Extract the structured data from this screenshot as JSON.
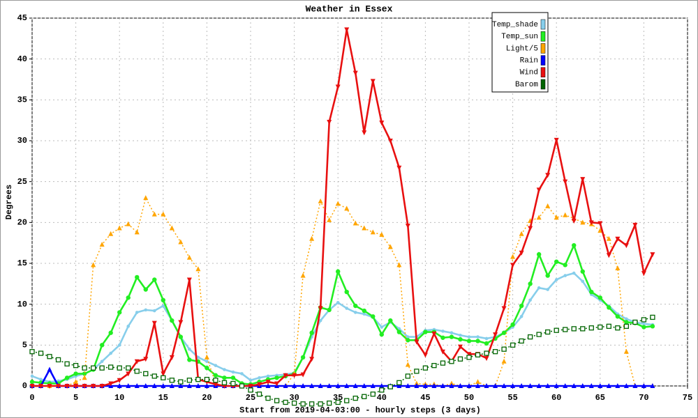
{
  "chart_data": {
    "type": "line",
    "title": "Weather in Essex",
    "xlabel": "Start from 2019-04-03:00 - hourly steps (3 days)",
    "ylabel": "Degrees",
    "x": [
      0,
      1,
      2,
      3,
      4,
      5,
      6,
      7,
      8,
      9,
      10,
      11,
      12,
      13,
      14,
      15,
      16,
      17,
      18,
      19,
      20,
      21,
      22,
      23,
      24,
      25,
      26,
      27,
      28,
      29,
      30,
      31,
      32,
      33,
      34,
      35,
      36,
      37,
      38,
      39,
      40,
      41,
      42,
      43,
      44,
      45,
      46,
      47,
      48,
      49,
      50,
      51,
      52,
      53,
      54,
      55,
      56,
      57,
      58,
      59,
      60,
      61,
      62,
      63,
      64,
      65,
      66,
      67,
      68,
      69,
      70,
      71
    ],
    "xlim": [
      0,
      75
    ],
    "xticks": [
      0,
      5,
      10,
      15,
      20,
      25,
      30,
      35,
      40,
      45,
      50,
      55,
      60,
      65,
      70,
      75
    ],
    "ylim": [
      0,
      45
    ],
    "yticks": [
      0,
      5,
      10,
      15,
      20,
      25,
      30,
      35,
      40,
      45
    ],
    "grid": true,
    "legend": "top-right",
    "series": [
      {
        "name": "Temp_shade",
        "color": "#87ceeb",
        "marker": "dot",
        "dash": false,
        "values": [
          1.2,
          0.8,
          0.5,
          0.6,
          0.8,
          1.2,
          1.5,
          2,
          3,
          4,
          5,
          7.3,
          9,
          9.3,
          9.2,
          9.8,
          8,
          6,
          4.5,
          3.5,
          3,
          2.5,
          2,
          1.7,
          1.5,
          0.7,
          1,
          1.2,
          1.3,
          1.4,
          1.6,
          3.5,
          6,
          8,
          9.3,
          10.2,
          9.5,
          9,
          8.8,
          8.4,
          7.2,
          7.8,
          7,
          6,
          6,
          6.8,
          6.9,
          6.7,
          6.5,
          6.2,
          6,
          6,
          5.8,
          6,
          6.5,
          7.2,
          8.5,
          10.5,
          12,
          11.8,
          13,
          13.5,
          13.8,
          12.8,
          11.2,
          10.5,
          9.8,
          8.8,
          8.2,
          7.8,
          7.6,
          7.5
        ]
      },
      {
        "name": "Temp_sun",
        "color": "#22ee22",
        "marker": "circle",
        "dash": false,
        "values": [
          0.5,
          0.4,
          0.3,
          0.3,
          1,
          1.5,
          1.5,
          2,
          5,
          6.5,
          9,
          10.8,
          13.3,
          11.8,
          13,
          10.5,
          8,
          6,
          3.2,
          3,
          2.2,
          1.3,
          1,
          1,
          0.3,
          0.2,
          0.5,
          0.8,
          1,
          1.2,
          1.5,
          3.5,
          6.5,
          9.6,
          9.3,
          14,
          11.5,
          9.8,
          9.2,
          8.5,
          6.3,
          8,
          6.6,
          5.6,
          5.6,
          6.6,
          6.6,
          5.9,
          6,
          5.7,
          5.5,
          5.5,
          5.2,
          5.8,
          6.5,
          7.5,
          9.8,
          12.5,
          16.1,
          13.5,
          15.2,
          14.8,
          17.2,
          14,
          11.5,
          10.8,
          9.6,
          8.5,
          7.8,
          7.7,
          7.2,
          7.3
        ]
      },
      {
        "name": "Light/5",
        "color": "#ffa500",
        "marker": "tri-up",
        "dash": true,
        "values": [
          0,
          0,
          0,
          0,
          0,
          0.5,
          1,
          14.8,
          17.3,
          18.6,
          19.3,
          19.8,
          18.8,
          23,
          21,
          21,
          19.3,
          17.6,
          15.7,
          14.3,
          3.5,
          0.3,
          0,
          0,
          0,
          0,
          0,
          0,
          0,
          0,
          1.5,
          13.5,
          18,
          22.6,
          20.3,
          22.3,
          21.7,
          19.9,
          19.3,
          18.8,
          18.5,
          17,
          14.8,
          2.6,
          0.3,
          0.2,
          0.2,
          0,
          0.3,
          0,
          0,
          0.5,
          0,
          0,
          3,
          15.8,
          18.6,
          20.2,
          20.6,
          22,
          20.6,
          20.9,
          20.5,
          20,
          19.8,
          19,
          18,
          14.4,
          4.2,
          0,
          0,
          0
        ]
      },
      {
        "name": "Rain",
        "color": "#0000ff",
        "marker": "tri-up",
        "dash": false,
        "values": [
          0,
          0,
          2,
          0,
          0,
          0,
          0,
          0,
          0,
          0,
          0,
          0,
          0,
          0,
          0,
          0,
          0,
          0,
          0,
          0,
          0,
          0,
          0,
          0,
          0,
          0,
          0,
          0,
          0,
          0,
          0,
          0,
          0,
          0,
          0,
          0,
          0,
          0,
          0,
          0,
          0,
          0,
          0,
          0,
          0,
          0,
          0,
          0,
          0,
          0,
          0,
          0,
          0,
          0,
          0,
          0,
          0,
          0,
          0,
          0,
          0,
          0,
          0,
          0,
          0,
          0,
          0,
          0,
          0,
          0,
          0,
          0
        ]
      },
      {
        "name": "Wind",
        "color": "#e81010",
        "marker": "tri-down",
        "dash": false,
        "values": [
          0,
          0,
          0,
          0,
          0,
          0,
          0,
          0,
          0,
          0.3,
          0.7,
          1.5,
          3,
          3.3,
          7.7,
          1.5,
          3.5,
          7.8,
          13,
          0.8,
          0.5,
          0.2,
          0,
          0,
          0,
          0,
          0.2,
          0.5,
          0.3,
          1.3,
          1.3,
          1.4,
          3.3,
          9.5,
          32.3,
          36.6,
          43.6,
          38.3,
          31,
          37.3,
          32.2,
          30,
          26.7,
          19.6,
          5.4,
          3.8,
          6.4,
          4.2,
          3,
          4.8,
          3.9,
          3.9,
          3.4,
          6.3,
          9.5,
          14.8,
          16.3,
          19.3,
          24,
          25.8,
          30.1,
          25,
          20.2,
          25.3,
          20,
          19.9,
          16,
          18,
          17.2,
          19.7,
          13.8,
          16.1
        ]
      },
      {
        "name": "Barom",
        "color": "#006400",
        "marker": "square",
        "dash": true,
        "values": [
          4.2,
          4,
          3.6,
          3.2,
          2.7,
          2.5,
          2.2,
          2.2,
          2.2,
          2.3,
          2.2,
          2.2,
          1.8,
          1.5,
          1.2,
          1,
          0.7,
          0.5,
          0.7,
          0.8,
          0.8,
          0.7,
          0.4,
          0.3,
          0,
          -0.5,
          -1,
          -1.5,
          -1.8,
          -2,
          -2.1,
          -2.2,
          -2.2,
          -2.2,
          -2.1,
          -2,
          -1.8,
          -1.5,
          -1.3,
          -1,
          -0.5,
          -0.1,
          0.4,
          1.2,
          1.8,
          2.2,
          2.5,
          2.8,
          3,
          3.3,
          3.5,
          3.8,
          4,
          4.2,
          4.5,
          5,
          5.5,
          6,
          6.3,
          6.6,
          6.8,
          6.9,
          7,
          7,
          7.1,
          7.2,
          7.3,
          7.1,
          7.3,
          7.8,
          8.1,
          8.4
        ]
      }
    ]
  }
}
